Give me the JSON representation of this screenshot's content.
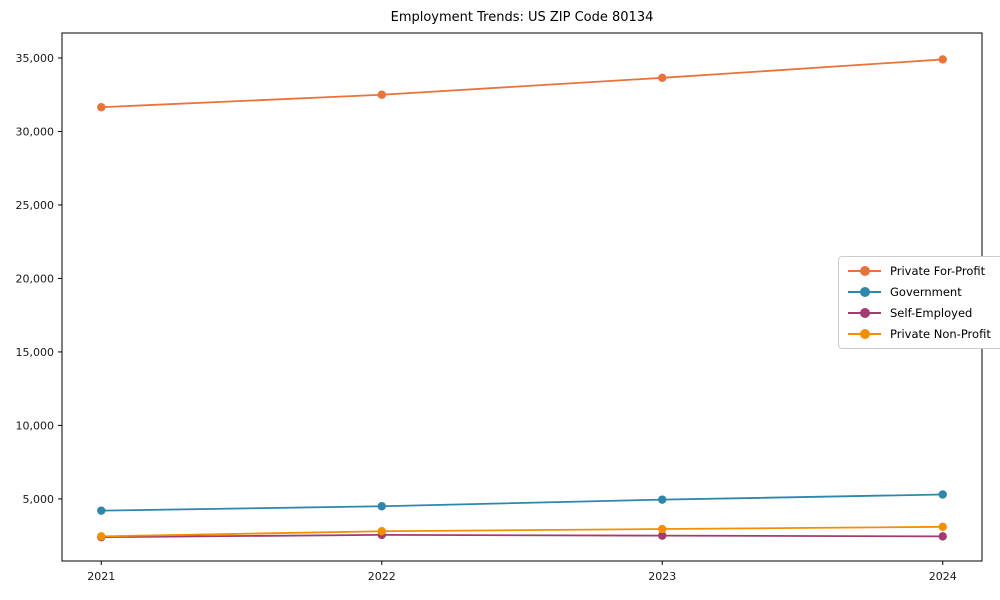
{
  "title": "Employment Trends: US ZIP Code 80134",
  "chart_data": {
    "type": "line",
    "x": [
      2021,
      2022,
      2023,
      2024
    ],
    "xticks": [
      2021,
      2022,
      2023,
      2024
    ],
    "yticks": [
      5000,
      10000,
      15000,
      20000,
      25000,
      30000,
      35000
    ],
    "xlim": [
      2020.86,
      2024.14
    ],
    "ylim": [
      775,
      36700
    ],
    "grid": false,
    "legend_position": "center right",
    "marker": "circle",
    "title": "Employment Trends: US ZIP Code 80134",
    "xlabel": "",
    "ylabel": "",
    "series": [
      {
        "name": "Private For-Profit",
        "color": "#e8743b",
        "values": [
          31650,
          32500,
          33650,
          34900
        ]
      },
      {
        "name": "Government",
        "color": "#2e86ab",
        "values": [
          4200,
          4500,
          4950,
          5300
        ]
      },
      {
        "name": "Self-Employed",
        "color": "#a23b72",
        "values": [
          2400,
          2550,
          2500,
          2450
        ]
      },
      {
        "name": "Private Non-Profit",
        "color": "#f18f01",
        "values": [
          2450,
          2800,
          2950,
          3100
        ]
      }
    ]
  }
}
